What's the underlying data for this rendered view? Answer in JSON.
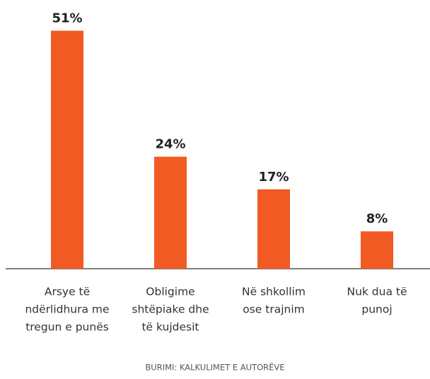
{
  "chart_data": {
    "type": "bar",
    "categories": [
      [
        "Arsye të",
        "ndërlidhura me",
        "tregun e punës"
      ],
      [
        "Obligime",
        "shtëpiake dhe",
        "të kujdesit"
      ],
      [
        "Në shkollim",
        "ose trajnim"
      ],
      [
        "Nuk dua të",
        "punoj"
      ]
    ],
    "values": [
      51,
      24,
      17,
      8
    ],
    "value_labels": [
      "51%",
      "24%",
      "17%",
      "8%"
    ],
    "color": "#f15a22",
    "ylim": [
      0,
      55
    ],
    "source": "BURIMI: KALKULIMET E AUTORËVE"
  }
}
